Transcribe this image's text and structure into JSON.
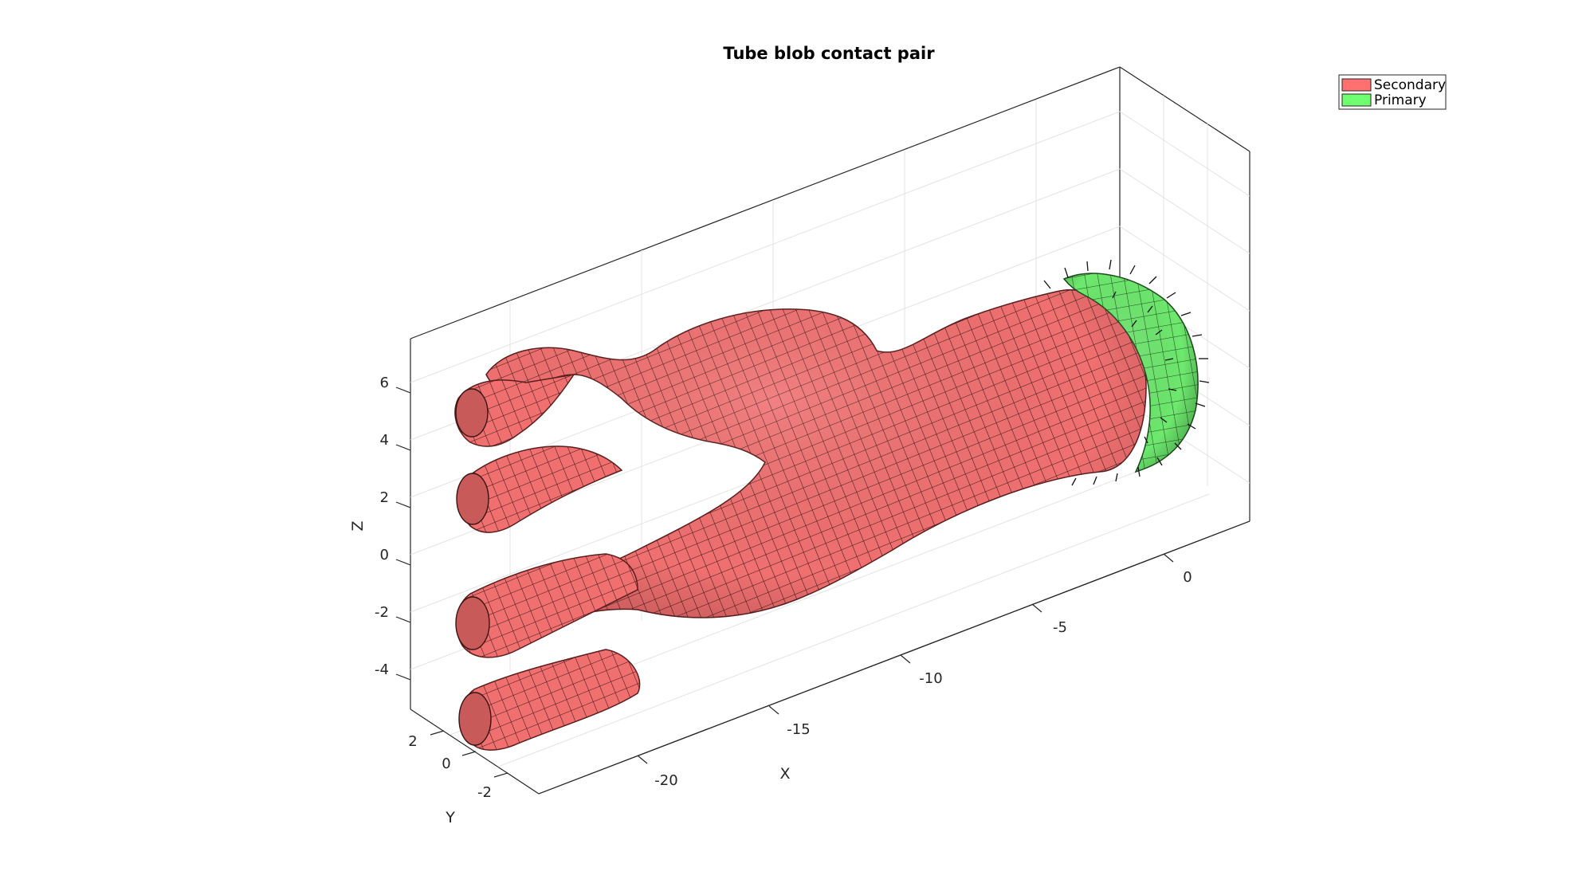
{
  "chart_data": {
    "type": "surface-mesh-3d",
    "title": "Tube blob contact pair",
    "xlabel": "X",
    "ylabel": "Y",
    "zlabel": "Z",
    "xlim": [
      -23,
      2
    ],
    "ylim": [
      -3,
      3
    ],
    "zlim": [
      -5,
      8
    ],
    "x_ticks": [
      "-20",
      "-15",
      "-10",
      "-5",
      "0"
    ],
    "y_ticks": [
      "2",
      "0",
      "-2"
    ],
    "z_ticks": [
      "6",
      "4",
      "2",
      "0",
      "-2",
      "-4"
    ],
    "grid": true,
    "legend_position": "top-right",
    "series": [
      {
        "name": "Secondary",
        "color": "#ff7070",
        "shape": "branching tube mesh"
      },
      {
        "name": "Primary",
        "color": "#70ff70",
        "shape": "spherical cap mesh with normal vectors"
      }
    ]
  },
  "colors": {
    "secondary_face": "#ff7070",
    "secondary_shade": "#c84848",
    "primary_face": "#70ff70",
    "primary_shade": "#3fa23f",
    "mesh_edge": "#2a1010",
    "axis": "#262626",
    "grid": "#e6e6e6"
  }
}
